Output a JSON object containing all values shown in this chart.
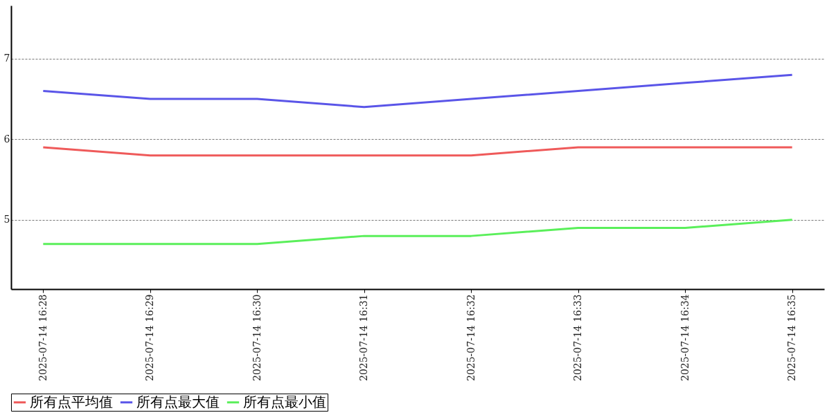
{
  "chart_data": {
    "type": "line",
    "categories": [
      "2025-07-14 16:28",
      "2025-07-14 16:29",
      "2025-07-14 16:30",
      "2025-07-14 16:31",
      "2025-07-14 16:32",
      "2025-07-14 16:33",
      "2025-07-14 16:34",
      "2025-07-14 16:35"
    ],
    "series": [
      {
        "name": "所有点平均值",
        "color": "#ef5a5a",
        "values": [
          5.9,
          5.8,
          5.8,
          5.8,
          5.8,
          5.9,
          5.9,
          5.9
        ]
      },
      {
        "name": "所有点最大值",
        "color": "#5a55e8",
        "values": [
          6.6,
          6.5,
          6.5,
          6.4,
          6.5,
          6.6,
          6.7,
          6.8
        ]
      },
      {
        "name": "所有点最小值",
        "color": "#5aef5a",
        "values": [
          4.7,
          4.7,
          4.7,
          4.8,
          4.8,
          4.9,
          4.9,
          5.0
        ]
      }
    ],
    "ylim": [
      4.14,
      7.66
    ],
    "yticks": [
      5,
      6,
      7
    ],
    "grid": "y",
    "legend": "bottom",
    "marker": "none",
    "line_style": "solid"
  }
}
